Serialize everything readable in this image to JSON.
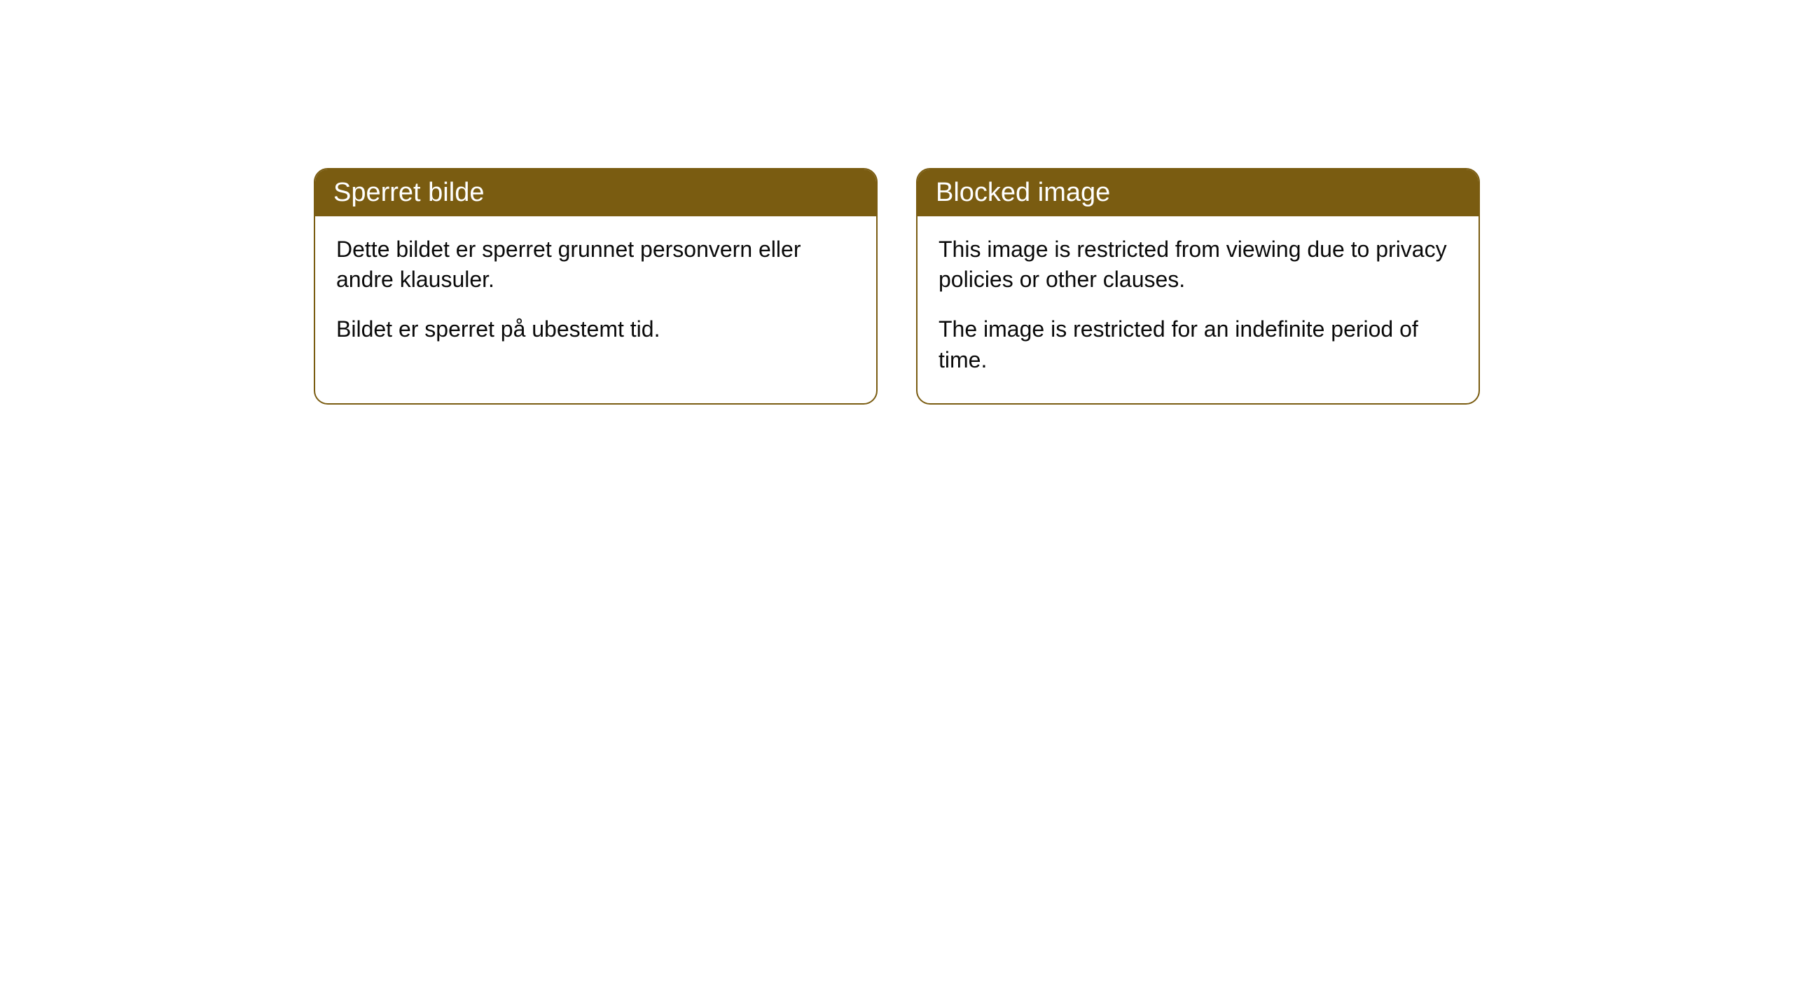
{
  "cards": [
    {
      "title": "Sperret bilde",
      "paragraph1": "Dette bildet er sperret grunnet personvern eller andre klausuler.",
      "paragraph2": "Bildet er sperret på ubestemt tid."
    },
    {
      "title": "Blocked image",
      "paragraph1": "This image is restricted from viewing due to privacy policies or other clauses.",
      "paragraph2": "The image is restricted for an indefinite period of time."
    }
  ],
  "styling": {
    "header_background": "#7a5c11",
    "header_text_color": "#ffffff",
    "border_color": "#7a5c11",
    "body_background": "#ffffff",
    "body_text_color": "#0a0a0a",
    "border_radius": 20,
    "title_fontsize": 38,
    "body_fontsize": 32
  }
}
